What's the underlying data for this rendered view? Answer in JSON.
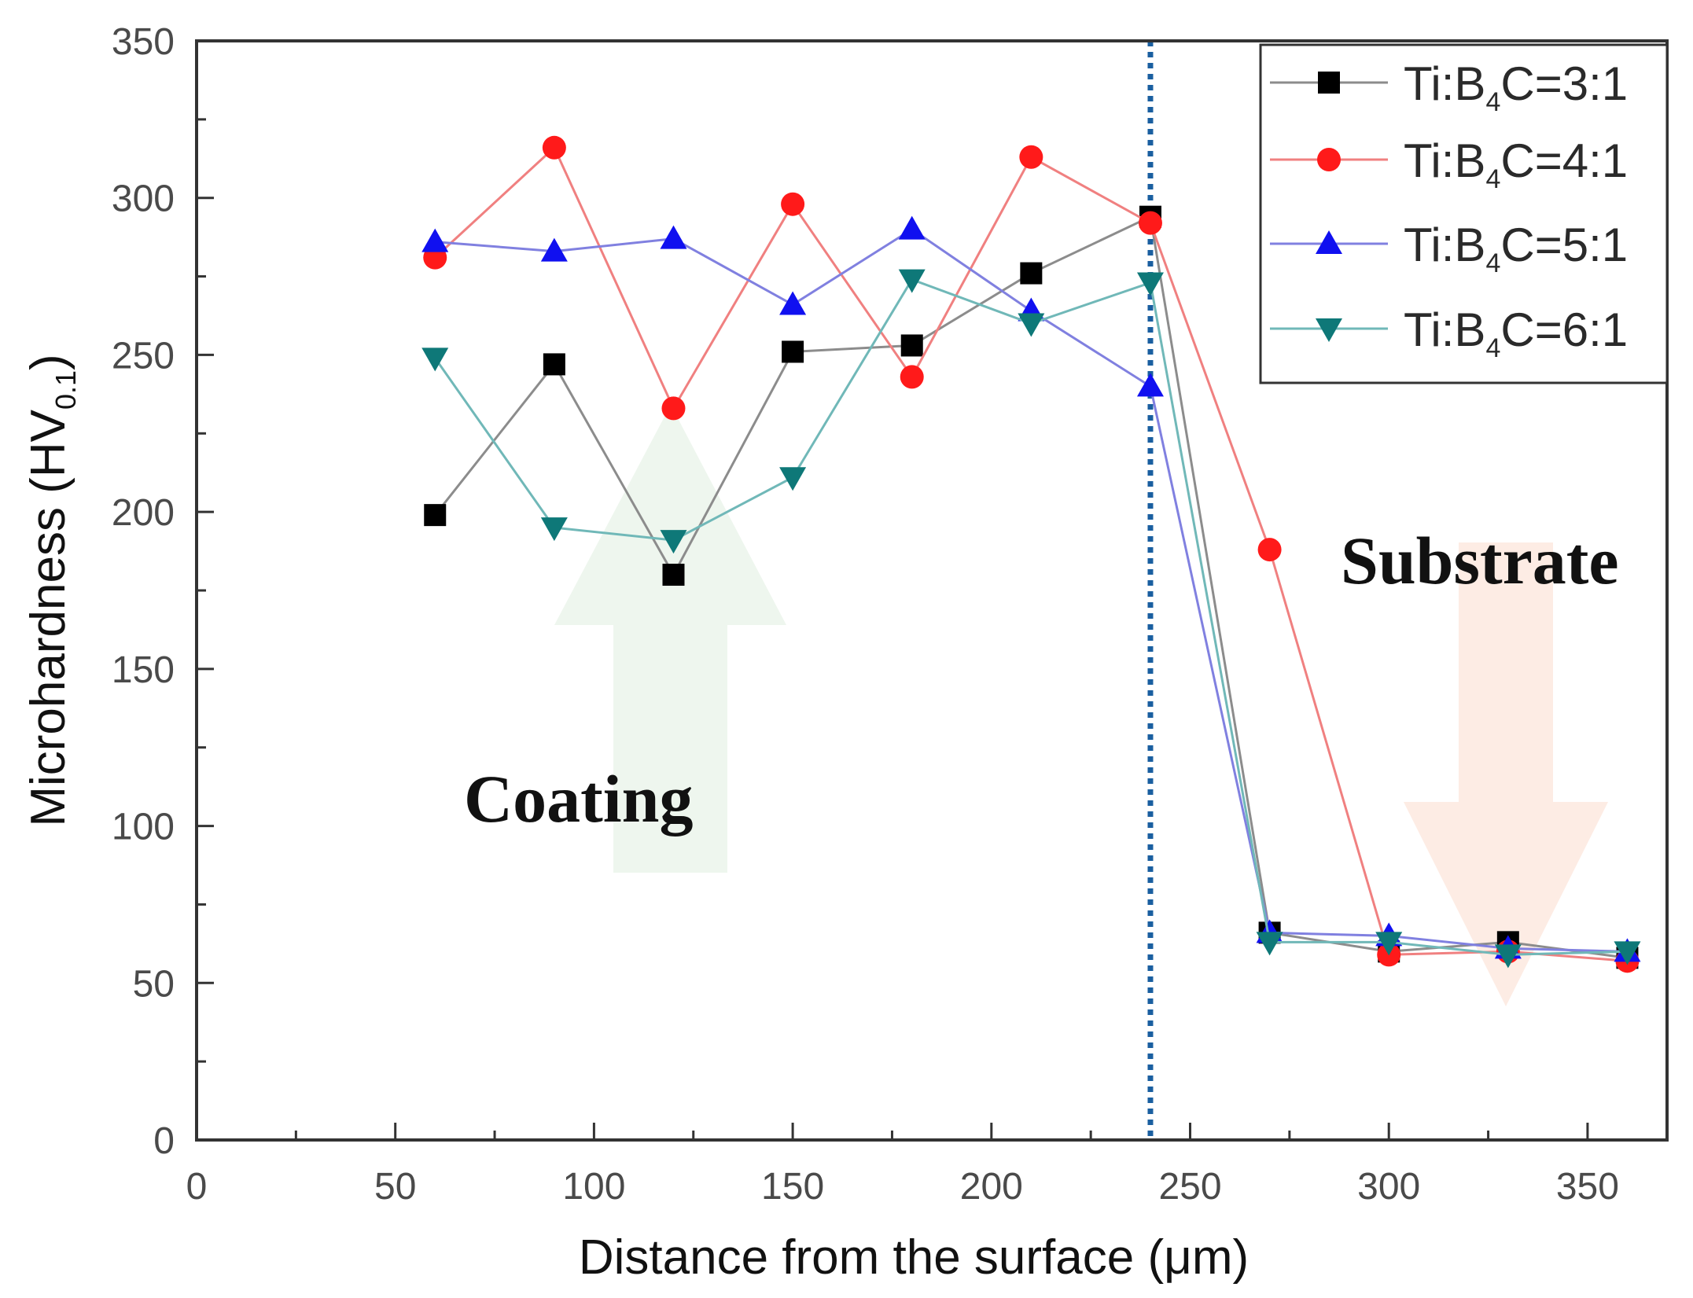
{
  "chart_data": {
    "type": "line",
    "xlabel": "Distance from the surface (μm)",
    "ylabel": {
      "main": "Microhardness (HV",
      "subscript": "0.1",
      "close": ")"
    },
    "xlim": [
      0,
      370
    ],
    "ylim": [
      0,
      350
    ],
    "xticks": [
      0,
      50,
      100,
      150,
      200,
      250,
      300,
      350
    ],
    "yticks": [
      0,
      50,
      100,
      150,
      200,
      250,
      300,
      350
    ],
    "x": [
      60,
      90,
      120,
      150,
      180,
      210,
      240,
      270,
      300,
      330,
      360
    ],
    "interface_x": 240,
    "annotations": {
      "coating": "Coating",
      "substrate": "Substrate"
    },
    "series": [
      {
        "name": "Ti:B4C=3:1",
        "legend": {
          "prefix": "Ti:B",
          "sub": "4",
          "suffix": "C=3:1"
        },
        "color": "#000000",
        "line_color": "#8c8c8c",
        "marker": "square",
        "values": [
          199,
          247,
          180,
          251,
          253,
          276,
          294,
          66,
          60,
          63,
          58
        ]
      },
      {
        "name": "Ti:B4C=4:1",
        "legend": {
          "prefix": "Ti:B",
          "sub": "4",
          "suffix": "C=4:1"
        },
        "color": "#ff1a1a",
        "line_color": "#f08080",
        "marker": "circle",
        "values": [
          281,
          316,
          233,
          298,
          243,
          313,
          292,
          188,
          59,
          60,
          57
        ]
      },
      {
        "name": "Ti:B4C=5:1",
        "legend": {
          "prefix": "Ti:B",
          "sub": "4",
          "suffix": "C=5:1"
        },
        "color": "#1010f0",
        "line_color": "#8080e0",
        "marker": "triangle-up",
        "values": [
          286,
          283,
          287,
          266,
          290,
          264,
          240,
          66,
          65,
          61,
          60
        ]
      },
      {
        "name": "Ti:B4C=6:1",
        "legend": {
          "prefix": "Ti:B",
          "sub": "4",
          "suffix": "C=6:1"
        },
        "color": "#0e7878",
        "line_color": "#70b8b8",
        "marker": "triangle-down",
        "values": [
          249,
          195,
          191,
          211,
          274,
          260,
          273,
          63,
          63,
          59,
          60
        ]
      }
    ]
  }
}
